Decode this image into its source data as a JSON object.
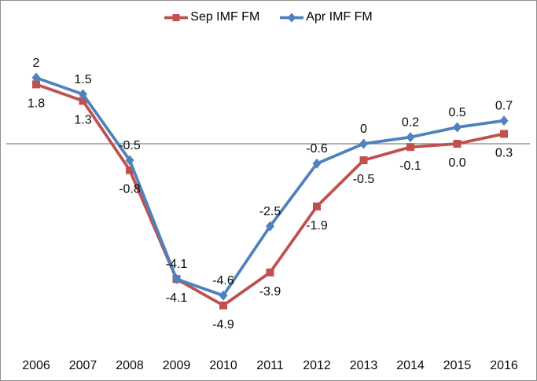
{
  "chart_data": {
    "type": "line",
    "title": "",
    "categories": [
      "2006",
      "2007",
      "2008",
      "2009",
      "2010",
      "2011",
      "2012",
      "2013",
      "2014",
      "2015",
      "2016"
    ],
    "series": [
      {
        "name": "Sep IMF FM",
        "color": "#C0504D",
        "marker": "square",
        "label_position": "below",
        "values": [
          1.8,
          1.3,
          -0.8,
          -4.1,
          -4.9,
          -3.9,
          -1.9,
          -0.5,
          -0.1,
          0.0,
          0.3
        ],
        "labels": [
          "1.8",
          "1.3",
          "-0.8",
          "-4.1",
          "-4.9",
          "-3.9",
          "-1.9",
          "-0.5",
          "-0.1",
          "0.0",
          "0.3"
        ]
      },
      {
        "name": "Apr IMF FM",
        "color": "#4F81BD",
        "marker": "diamond",
        "label_position": "above",
        "values": [
          2,
          1.5,
          -0.5,
          -4.1,
          -4.6,
          -2.5,
          -0.6,
          0,
          0.2,
          0.5,
          0.7
        ],
        "labels": [
          "2",
          "1.5",
          "-0.5",
          "-4.1",
          "-4.6",
          "-2.5",
          "-0.6",
          "0",
          "0.2",
          "0.5",
          "0.7"
        ]
      }
    ],
    "legend": {
      "position": "top",
      "items": [
        "Sep IMF FM",
        "Apr IMF FM"
      ]
    },
    "axes": {
      "x_ticks": [
        "2006",
        "2007",
        "2008",
        "2009",
        "2010",
        "2011",
        "2012",
        "2013",
        "2014",
        "2015",
        "2016"
      ],
      "y_axis_visible": false,
      "y_tick_labels_visible": false,
      "zero_line": true,
      "ylim": [
        -5.6,
        3.2
      ],
      "grid": false
    },
    "colors": {
      "axis_line": "#808080",
      "label_text": "#0a0a0a",
      "border": "#8f8f8f",
      "background": "#ffffff"
    }
  }
}
